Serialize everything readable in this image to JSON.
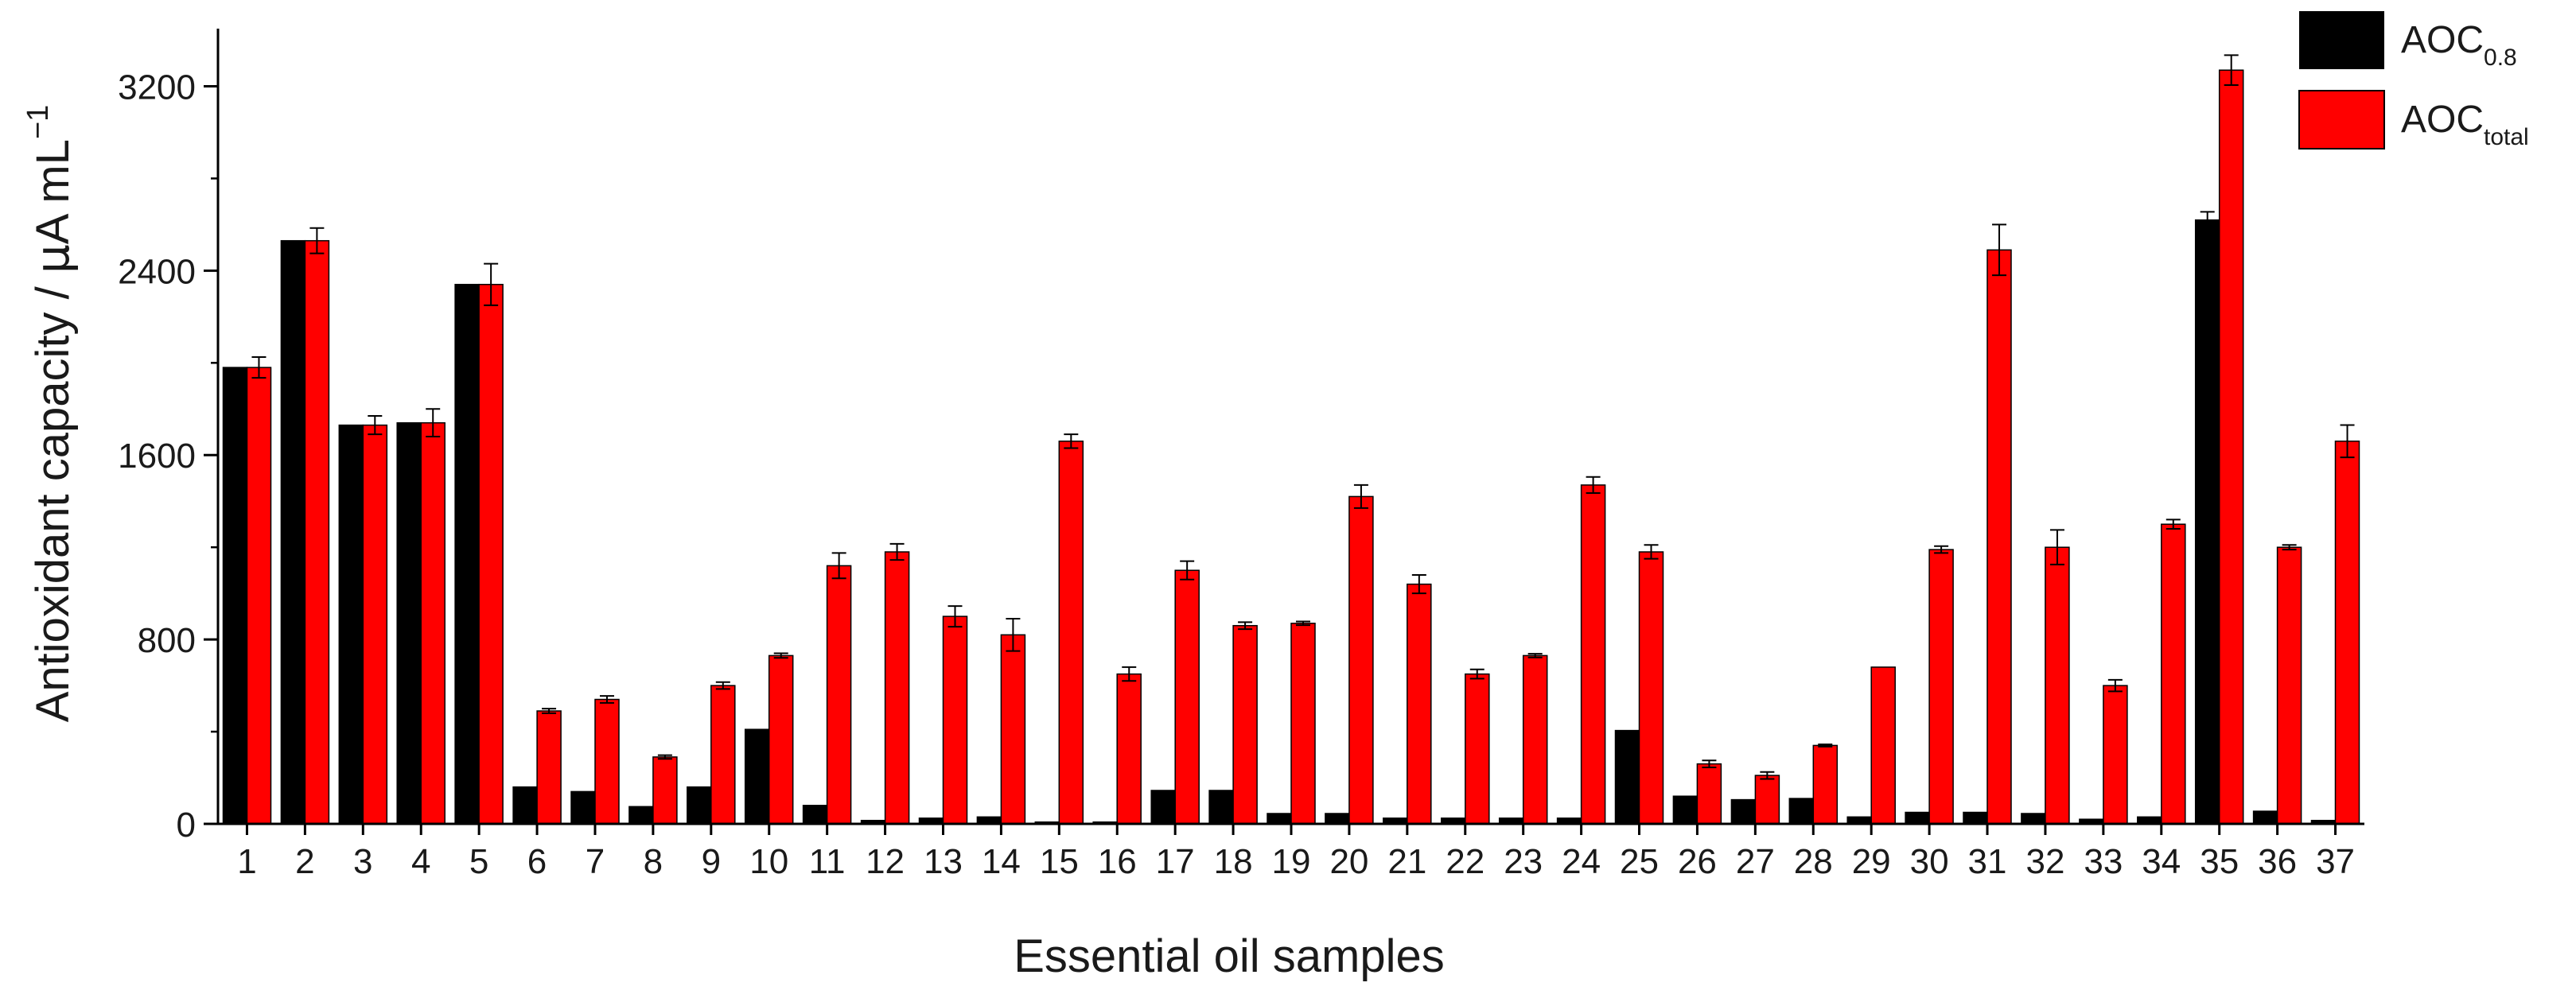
{
  "chart_data": {
    "type": "bar",
    "xlabel": "Essential oil samples",
    "ylabel_main": "Antioxidant capacity / ",
    "ylabel_mu": "μ",
    "ylabel_unit": "A mL",
    "ylabel_sup": "−1",
    "ylim": [
      0,
      3450
    ],
    "yticks": [
      0,
      800,
      1600,
      2400,
      3200
    ],
    "ytick_labels": [
      "0",
      "800",
      "1600",
      "2400",
      "3200"
    ],
    "minor_tick_step": 400,
    "grid": false,
    "legend_position": "top-right",
    "categories": [
      "1",
      "2",
      "3",
      "4",
      "5",
      "6",
      "7",
      "8",
      "9",
      "10",
      "11",
      "12",
      "13",
      "14",
      "15",
      "16",
      "17",
      "18",
      "19",
      "20",
      "21",
      "22",
      "23",
      "24",
      "25",
      "26",
      "27",
      "28",
      "29",
      "30",
      "31",
      "32",
      "33",
      "34",
      "35",
      "36",
      "37"
    ],
    "series": [
      {
        "name": "AOC",
        "subscript": "0.8",
        "color": "#000000",
        "values": [
          1980,
          2530,
          1730,
          1740,
          2340,
          160,
          140,
          75,
          160,
          410,
          80,
          15,
          25,
          30,
          8,
          8,
          145,
          145,
          45,
          45,
          25,
          25,
          25,
          25,
          405,
          120,
          105,
          110,
          30,
          50,
          50,
          45,
          20,
          30,
          2620,
          55,
          15
        ],
        "errors": [
          0,
          0,
          0,
          0,
          0,
          0,
          0,
          0,
          0,
          0,
          0,
          0,
          0,
          0,
          0,
          0,
          0,
          0,
          0,
          0,
          0,
          0,
          0,
          0,
          0,
          0,
          0,
          0,
          0,
          0,
          0,
          0,
          0,
          0,
          35,
          0,
          0
        ]
      },
      {
        "name": "AOC",
        "subscript": "total",
        "color": "#ff0000",
        "values": [
          1980,
          2530,
          1730,
          1740,
          2340,
          490,
          540,
          290,
          600,
          730,
          1120,
          1180,
          900,
          820,
          1660,
          650,
          1100,
          860,
          870,
          1420,
          1040,
          650,
          730,
          1470,
          1180,
          260,
          210,
          340,
          680,
          1190,
          2490,
          1200,
          600,
          1300,
          3270,
          1200,
          1660
        ],
        "errors": [
          45,
          55,
          40,
          60,
          90,
          10,
          15,
          8,
          15,
          10,
          55,
          35,
          45,
          70,
          30,
          30,
          40,
          15,
          8,
          50,
          40,
          20,
          8,
          35,
          30,
          15,
          15,
          5,
          0,
          15,
          110,
          75,
          25,
          20,
          65,
          10,
          70
        ]
      }
    ]
  }
}
